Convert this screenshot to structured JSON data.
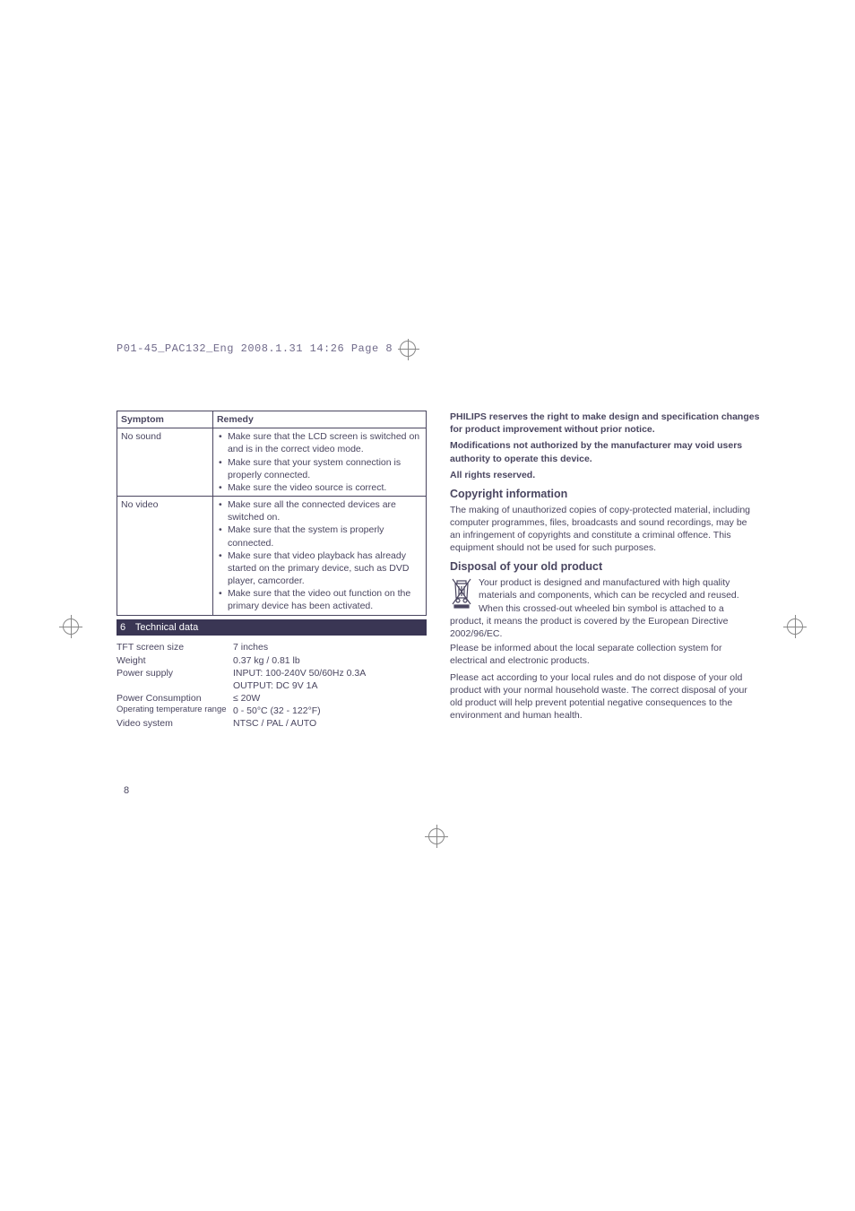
{
  "print_header": "P01-45_PAC132_Eng  2008.1.31  14:26  Page 8",
  "table": {
    "head": {
      "symptom": "Symptom",
      "remedy": "Remedy"
    },
    "rows": [
      {
        "symptom": "No sound",
        "remedies": [
          "Make sure that the LCD screen is switched on and is in the correct video mode.",
          "Make sure that your system connection is properly connected.",
          "Make sure the video source is correct."
        ]
      },
      {
        "symptom": "No video",
        "remedies": [
          "Make sure all the connected devices are switched on.",
          "Make sure that the system is properly connected.",
          "Make sure that video playback has already started on the primary device, such as DVD player, camcorder.",
          "Make sure that the video out function on the primary device has been activated."
        ]
      }
    ]
  },
  "section": {
    "number": "6",
    "title": "Technical data"
  },
  "specs": [
    {
      "label": "TFT screen size",
      "value": "7 inches"
    },
    {
      "label": "Weight",
      "value": "0.37 kg / 0.81 lb"
    },
    {
      "label": "Power supply",
      "value": "INPUT: 100-240V 50/60Hz 0.3A"
    },
    {
      "label": "",
      "value": "OUTPUT: DC 9V 1A"
    },
    {
      "label": "Power Consumption",
      "value": "≤ 20W"
    },
    {
      "label": "Operating temperature range",
      "value": "0 - 50°C (32 - 122°F)",
      "small": true
    },
    {
      "label": "Video system",
      "value": "NTSC / PAL / AUTO"
    }
  ],
  "right": {
    "notice": [
      "PHILIPS reserves the right to make design and specification changes for product improvement without prior notice.",
      "Modifications not authorized by the manufacturer may void users authority to operate this device.",
      "All rights reserved."
    ],
    "copyright_heading": "Copyright information",
    "copyright_body": "The making of unauthorized copies of copy-protected material, including computer programmes, files, broadcasts and sound recordings, may be an infringement of copyrights and constitute a criminal offence. This equipment should not be used for such purposes.",
    "disposal_heading": "Disposal of your old product",
    "disposal_p1": "Your product is designed and manufactured with high quality materials and components, which can be recycled and reused.",
    "disposal_p2": "When this crossed-out wheeled bin symbol is attached to a product, it means the product is covered by the European Directive 2002/96/EC.",
    "disposal_p3": "Please be informed about the local separate collection system for electrical and electronic products.",
    "disposal_p4": "Please act according to your local rules and do not dispose of your old product with your normal household waste. The correct disposal of your old product will help prevent potential negative consequences to the environment and human health."
  },
  "page_number": "8",
  "colors": {
    "text": "#4a4660",
    "bar": "#3a3654",
    "header": "#706a8a"
  }
}
